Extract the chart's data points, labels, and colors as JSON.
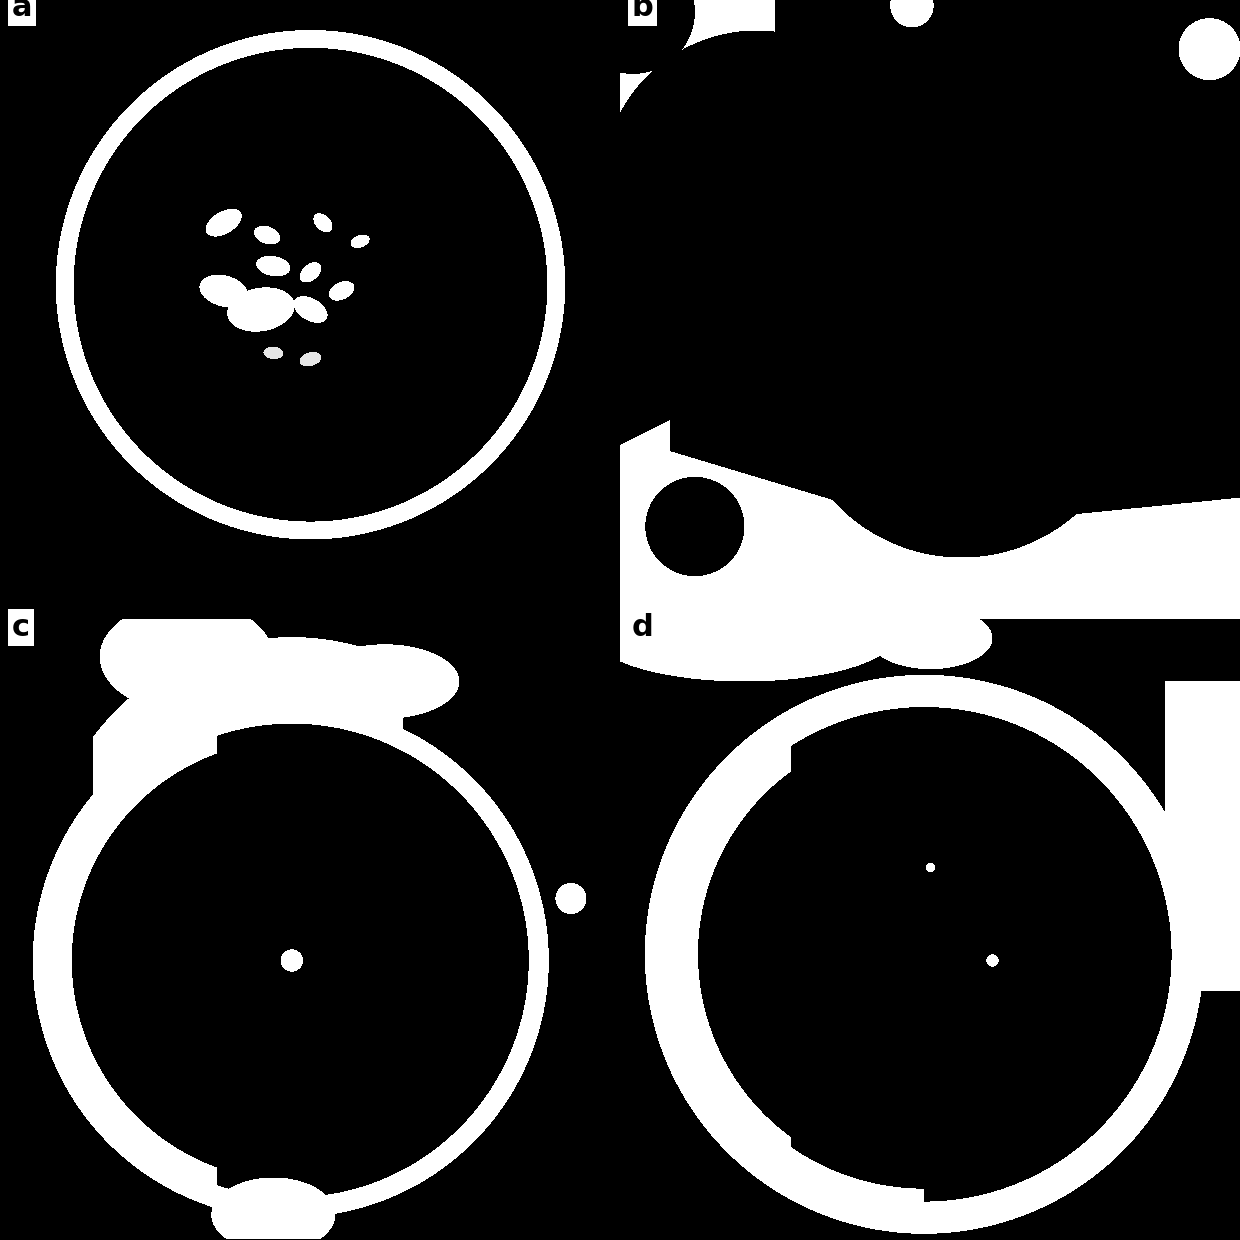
{
  "background_color": "#000000",
  "label_bg_color": "#ffffff",
  "label_text_color": "#000000",
  "labels": [
    "a",
    "b",
    "c",
    "d"
  ],
  "label_fontsize": 22,
  "label_fontweight": "bold",
  "fig_size": [
    12.4,
    12.4
  ],
  "dpi": 100
}
